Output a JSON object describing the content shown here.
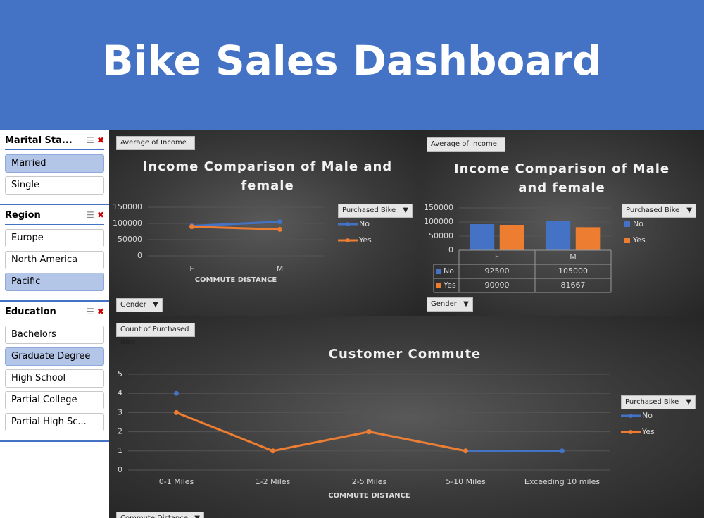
{
  "header": {
    "title": "Bike Sales Dashboard"
  },
  "slicers": [
    {
      "title": "Marital Sta...",
      "items": [
        {
          "label": "Married",
          "selected": true
        },
        {
          "label": "Single",
          "selected": false
        }
      ]
    },
    {
      "title": "Region",
      "items": [
        {
          "label": "Europe",
          "selected": false
        },
        {
          "label": "North America",
          "selected": false
        },
        {
          "label": "Pacific",
          "selected": true
        }
      ]
    },
    {
      "title": "Education",
      "items": [
        {
          "label": "Bachelors",
          "selected": false
        },
        {
          "label": "Graduate Degree",
          "selected": true
        },
        {
          "label": "High School",
          "selected": false
        },
        {
          "label": "Partial College",
          "selected": false
        },
        {
          "label": "Partial High Sc...",
          "selected": false
        }
      ]
    }
  ],
  "chart_data": [
    {
      "type": "line",
      "title": "Income Comparison of Male and female",
      "value_field": "Average of Income",
      "x_label": "COMMUTE DISTANCE",
      "filter_field": "Gender",
      "legend_title": "Purchased Bike",
      "categories": [
        "F",
        "M"
      ],
      "series": [
        {
          "name": "No",
          "color": "#4472c4",
          "values": [
            92500,
            105000
          ]
        },
        {
          "name": "Yes",
          "color": "#ed7d31",
          "values": [
            90000,
            81667
          ]
        }
      ],
      "ylim": [
        0,
        150000
      ],
      "yticks": [
        0,
        50000,
        100000,
        150000
      ],
      "grid": true,
      "legend": "right"
    },
    {
      "type": "bar",
      "title": "Income Comparison of Male and female",
      "value_field": "Average of Income",
      "filter_field": "Gender",
      "legend_title": "Purchased Bike",
      "data_table": true,
      "categories": [
        "F",
        "M"
      ],
      "series": [
        {
          "name": "No",
          "color": "#4472c4",
          "values": [
            92500,
            105000
          ]
        },
        {
          "name": "Yes",
          "color": "#ed7d31",
          "values": [
            90000,
            81667
          ]
        }
      ],
      "ylim": [
        0,
        150000
      ],
      "yticks": [
        0,
        50000,
        100000,
        150000
      ],
      "grid": true,
      "legend": "right"
    },
    {
      "type": "line",
      "title": "Customer Commute",
      "value_field": "Count of Purchased Bike",
      "x_label": "COMMUTE DISTANCE",
      "filter_field": "Commute Distance",
      "legend_title": "Purchased Bike",
      "categories": [
        "0-1 Miles",
        "1-2 Miles",
        "2-5 Miles",
        "5-10 Miles",
        "Exceeding 10 miles"
      ],
      "series": [
        {
          "name": "No",
          "color": "#4472c4",
          "values": [
            4,
            null,
            2,
            1,
            1
          ]
        },
        {
          "name": "Yes",
          "color": "#ed7d31",
          "values": [
            3,
            1,
            2,
            1,
            null
          ]
        }
      ],
      "ylim": [
        0,
        5
      ],
      "yticks": [
        0,
        1,
        2,
        3,
        4,
        5
      ],
      "grid": true,
      "legend": "right"
    }
  ]
}
